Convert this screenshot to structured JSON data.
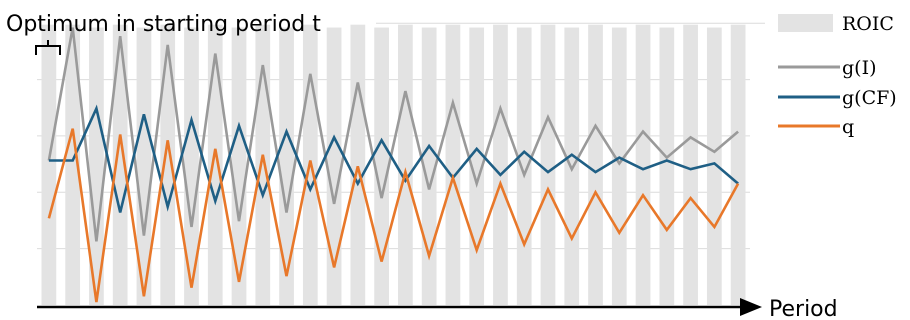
{
  "annotation": "Optimum in starting period t",
  "chart_data": {
    "type": "line",
    "xlabel": "Period",
    "ylabel": "",
    "ylim": [
      0,
      10
    ],
    "grid": true,
    "legend": "top-right",
    "bars": {
      "name": "ROIC",
      "color": "#e3e3e3",
      "values": [
        9.7,
        9.7,
        9.6,
        9.7,
        9.6,
        9.7,
        9.6,
        9.7,
        9.6,
        9.7,
        9.6,
        9.7,
        9.6,
        9.7,
        9.6,
        9.7,
        9.6,
        9.7,
        9.6,
        9.7,
        9.6,
        9.7,
        9.6,
        9.7,
        9.6,
        9.7,
        9.6,
        9.7,
        9.6,
        9.7
      ]
    },
    "series": [
      {
        "name": "g(I)",
        "color": "#9a9a9a",
        "x": [
          1,
          2,
          3,
          4,
          5,
          6,
          7,
          8,
          9,
          10,
          11,
          12,
          13,
          14,
          15,
          16,
          17,
          18,
          19,
          20,
          21,
          22,
          23,
          24,
          25,
          26,
          27,
          28,
          29,
          30
        ],
        "values": [
          5.0,
          9.6,
          2.2,
          9.3,
          2.4,
          9.0,
          2.7,
          8.7,
          2.9,
          8.3,
          3.2,
          8.0,
          3.5,
          7.7,
          3.7,
          7.4,
          4.0,
          7.0,
          4.2,
          6.8,
          4.5,
          6.5,
          4.7,
          6.2,
          4.9,
          6.0,
          5.1,
          5.8,
          5.3,
          6.0
        ]
      },
      {
        "name": "g(CF)",
        "color": "#1f5f85",
        "x": [
          1,
          2,
          3,
          4,
          5,
          6,
          7,
          8,
          9,
          10,
          11,
          12,
          13,
          14,
          15,
          16,
          17,
          18,
          19,
          20,
          21,
          22,
          23,
          24,
          25,
          26,
          27,
          28,
          29,
          30
        ],
        "values": [
          5.0,
          5.0,
          6.8,
          3.2,
          6.6,
          3.4,
          6.4,
          3.6,
          6.2,
          3.8,
          6.0,
          4.0,
          5.8,
          4.2,
          5.7,
          4.3,
          5.5,
          4.4,
          5.4,
          4.5,
          5.3,
          4.6,
          5.2,
          4.6,
          5.1,
          4.7,
          5.0,
          4.7,
          4.9,
          4.2
        ]
      },
      {
        "name": "q",
        "color": "#e8782a",
        "x": [
          1,
          2,
          3,
          4,
          5,
          6,
          7,
          8,
          9,
          10,
          11,
          12,
          13,
          14,
          15,
          16,
          17,
          18,
          19,
          20,
          21,
          22,
          23,
          24,
          25,
          26,
          27,
          28,
          29,
          30
        ],
        "values": [
          3.0,
          6.1,
          0.1,
          5.9,
          0.3,
          5.7,
          0.6,
          5.4,
          0.8,
          5.2,
          1.0,
          5.0,
          1.3,
          4.8,
          1.5,
          4.6,
          1.7,
          4.4,
          1.9,
          4.2,
          2.1,
          4.0,
          2.3,
          3.9,
          2.5,
          3.8,
          2.6,
          3.7,
          2.7,
          4.2
        ]
      }
    ]
  }
}
